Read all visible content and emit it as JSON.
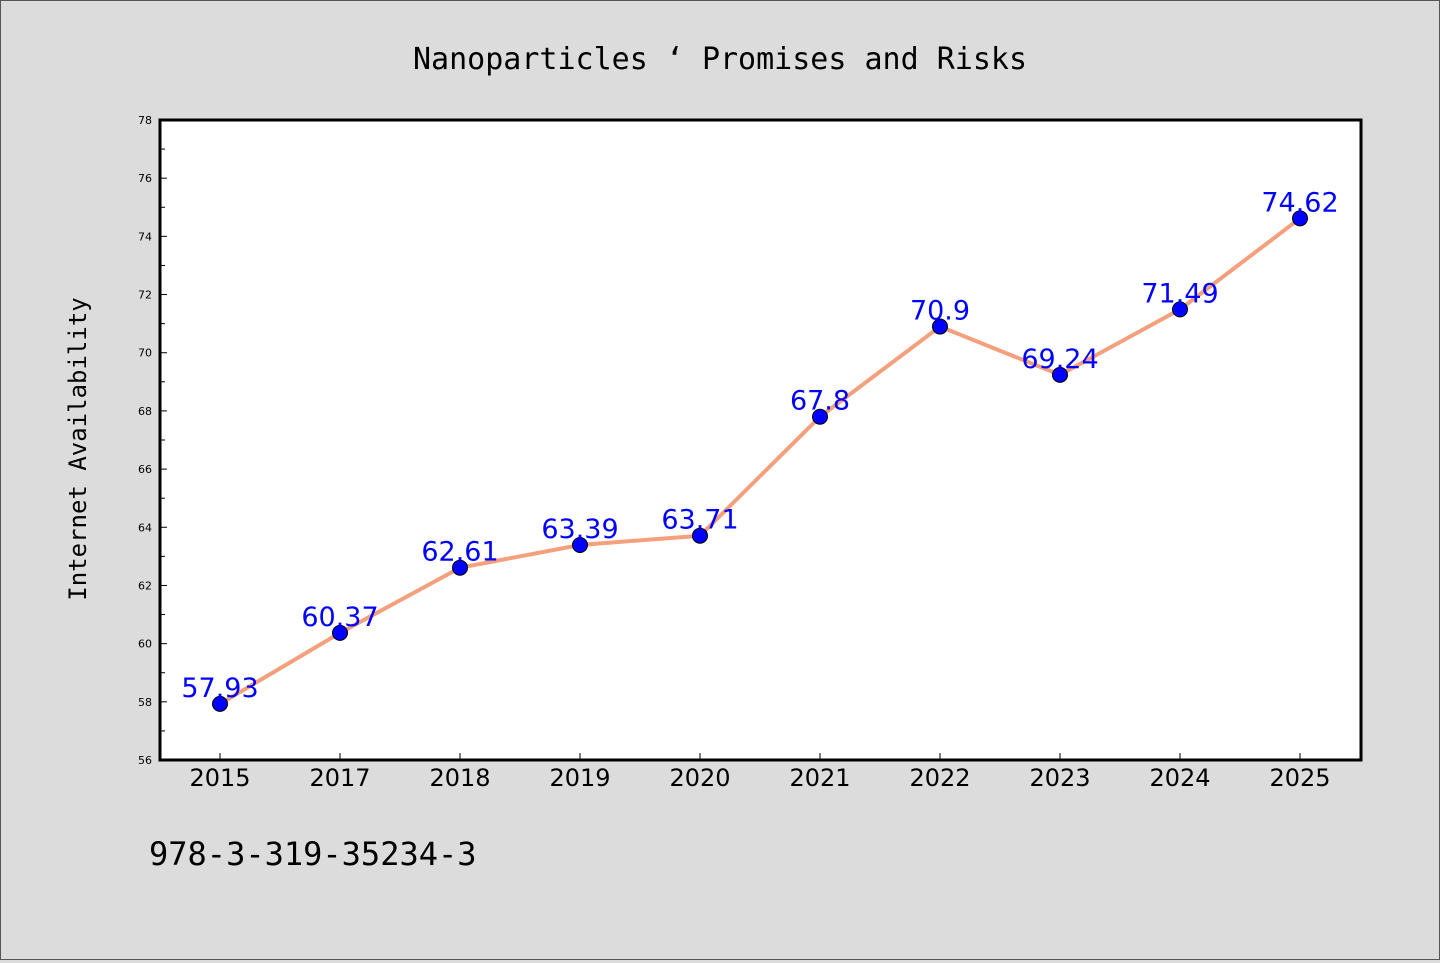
{
  "chart_data": {
    "type": "line",
    "title": "Nanoparticles ‘ Promises and Risks",
    "xlabel": "",
    "ylabel": "Internet Availability",
    "categories": [
      "2015",
      "2017",
      "2018",
      "2019",
      "2020",
      "2021",
      "2022",
      "2023",
      "2024",
      "2025"
    ],
    "series": [
      {
        "values": [
          57.93,
          60.37,
          62.61,
          63.39,
          63.71,
          67.8,
          70.9,
          69.24,
          71.49,
          74.62
        ],
        "data_labels": [
          "57.93",
          "60.37",
          "62.61",
          "63.39",
          "63.71",
          "67.8",
          "70.9",
          "69.24",
          "71.49",
          "74.62"
        ],
        "line_color": "#f4a07c",
        "marker_color": "#0000ff"
      }
    ],
    "ylim": [
      56,
      78
    ],
    "yticks": [
      "56",
      "58",
      "60",
      "62",
      "64",
      "66",
      "68",
      "70",
      "72",
      "74",
      "76",
      "78"
    ],
    "grid": false,
    "legend": "none"
  },
  "footer": {
    "text": "978-3-319-35234-3"
  },
  "colors": {
    "background": "#dcdcdc",
    "plot_background": "#ffffff",
    "line": "#f4a07c",
    "marker": "#0000ff",
    "data_label": "#0000ff"
  }
}
